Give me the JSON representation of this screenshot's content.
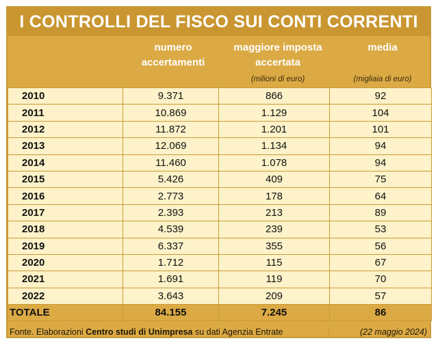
{
  "title": "I CONTROLLI DEL FISCO SUI CONTI CORRENTI",
  "columns": {
    "col1": {
      "line1": "numero",
      "line2": "accertamenti"
    },
    "col2": {
      "line1": "maggiore imposta",
      "line2": "accertata",
      "unit": "(milioni di euro)"
    },
    "col3": {
      "line1": "media",
      "unit": "(migliaia di euro)"
    }
  },
  "rows": [
    {
      "year": "2010",
      "numero": "9.371",
      "imposta": "866",
      "media": "92"
    },
    {
      "year": "2011",
      "numero": "10.869",
      "imposta": "1.129",
      "media": "104"
    },
    {
      "year": "2012",
      "numero": "11.872",
      "imposta": "1.201",
      "media": "101"
    },
    {
      "year": "2013",
      "numero": "12.069",
      "imposta": "1.134",
      "media": "94"
    },
    {
      "year": "2014",
      "numero": "11.460",
      "imposta": "1.078",
      "media": "94"
    },
    {
      "year": "2015",
      "numero": "5.426",
      "imposta": "409",
      "media": "75"
    },
    {
      "year": "2016",
      "numero": "2.773",
      "imposta": "178",
      "media": "64"
    },
    {
      "year": "2017",
      "numero": "2.393",
      "imposta": "213",
      "media": "89"
    },
    {
      "year": "2018",
      "numero": "4.539",
      "imposta": "239",
      "media": "53"
    },
    {
      "year": "2019",
      "numero": "6.337",
      "imposta": "355",
      "media": "56"
    },
    {
      "year": "2020",
      "numero": "1.712",
      "imposta": "115",
      "media": "67"
    },
    {
      "year": "2021",
      "numero": "1.691",
      "imposta": "119",
      "media": "70"
    },
    {
      "year": "2022",
      "numero": "3.643",
      "imposta": "209",
      "media": "57"
    }
  ],
  "total": {
    "label": "TOTALE",
    "numero": "84.155",
    "imposta": "7.245",
    "media": "86"
  },
  "footer": {
    "source_prefix": "Fonte. Elaborazioni ",
    "source_bold": "Centro studi di Unimpresa",
    "source_suffix": " su dati Agenzia Entrate",
    "date": "(22 maggio 2024)"
  },
  "colors": {
    "gold": "#dcaa44",
    "title_bar": "#c99631",
    "row_fill": "#fdf2c9"
  }
}
